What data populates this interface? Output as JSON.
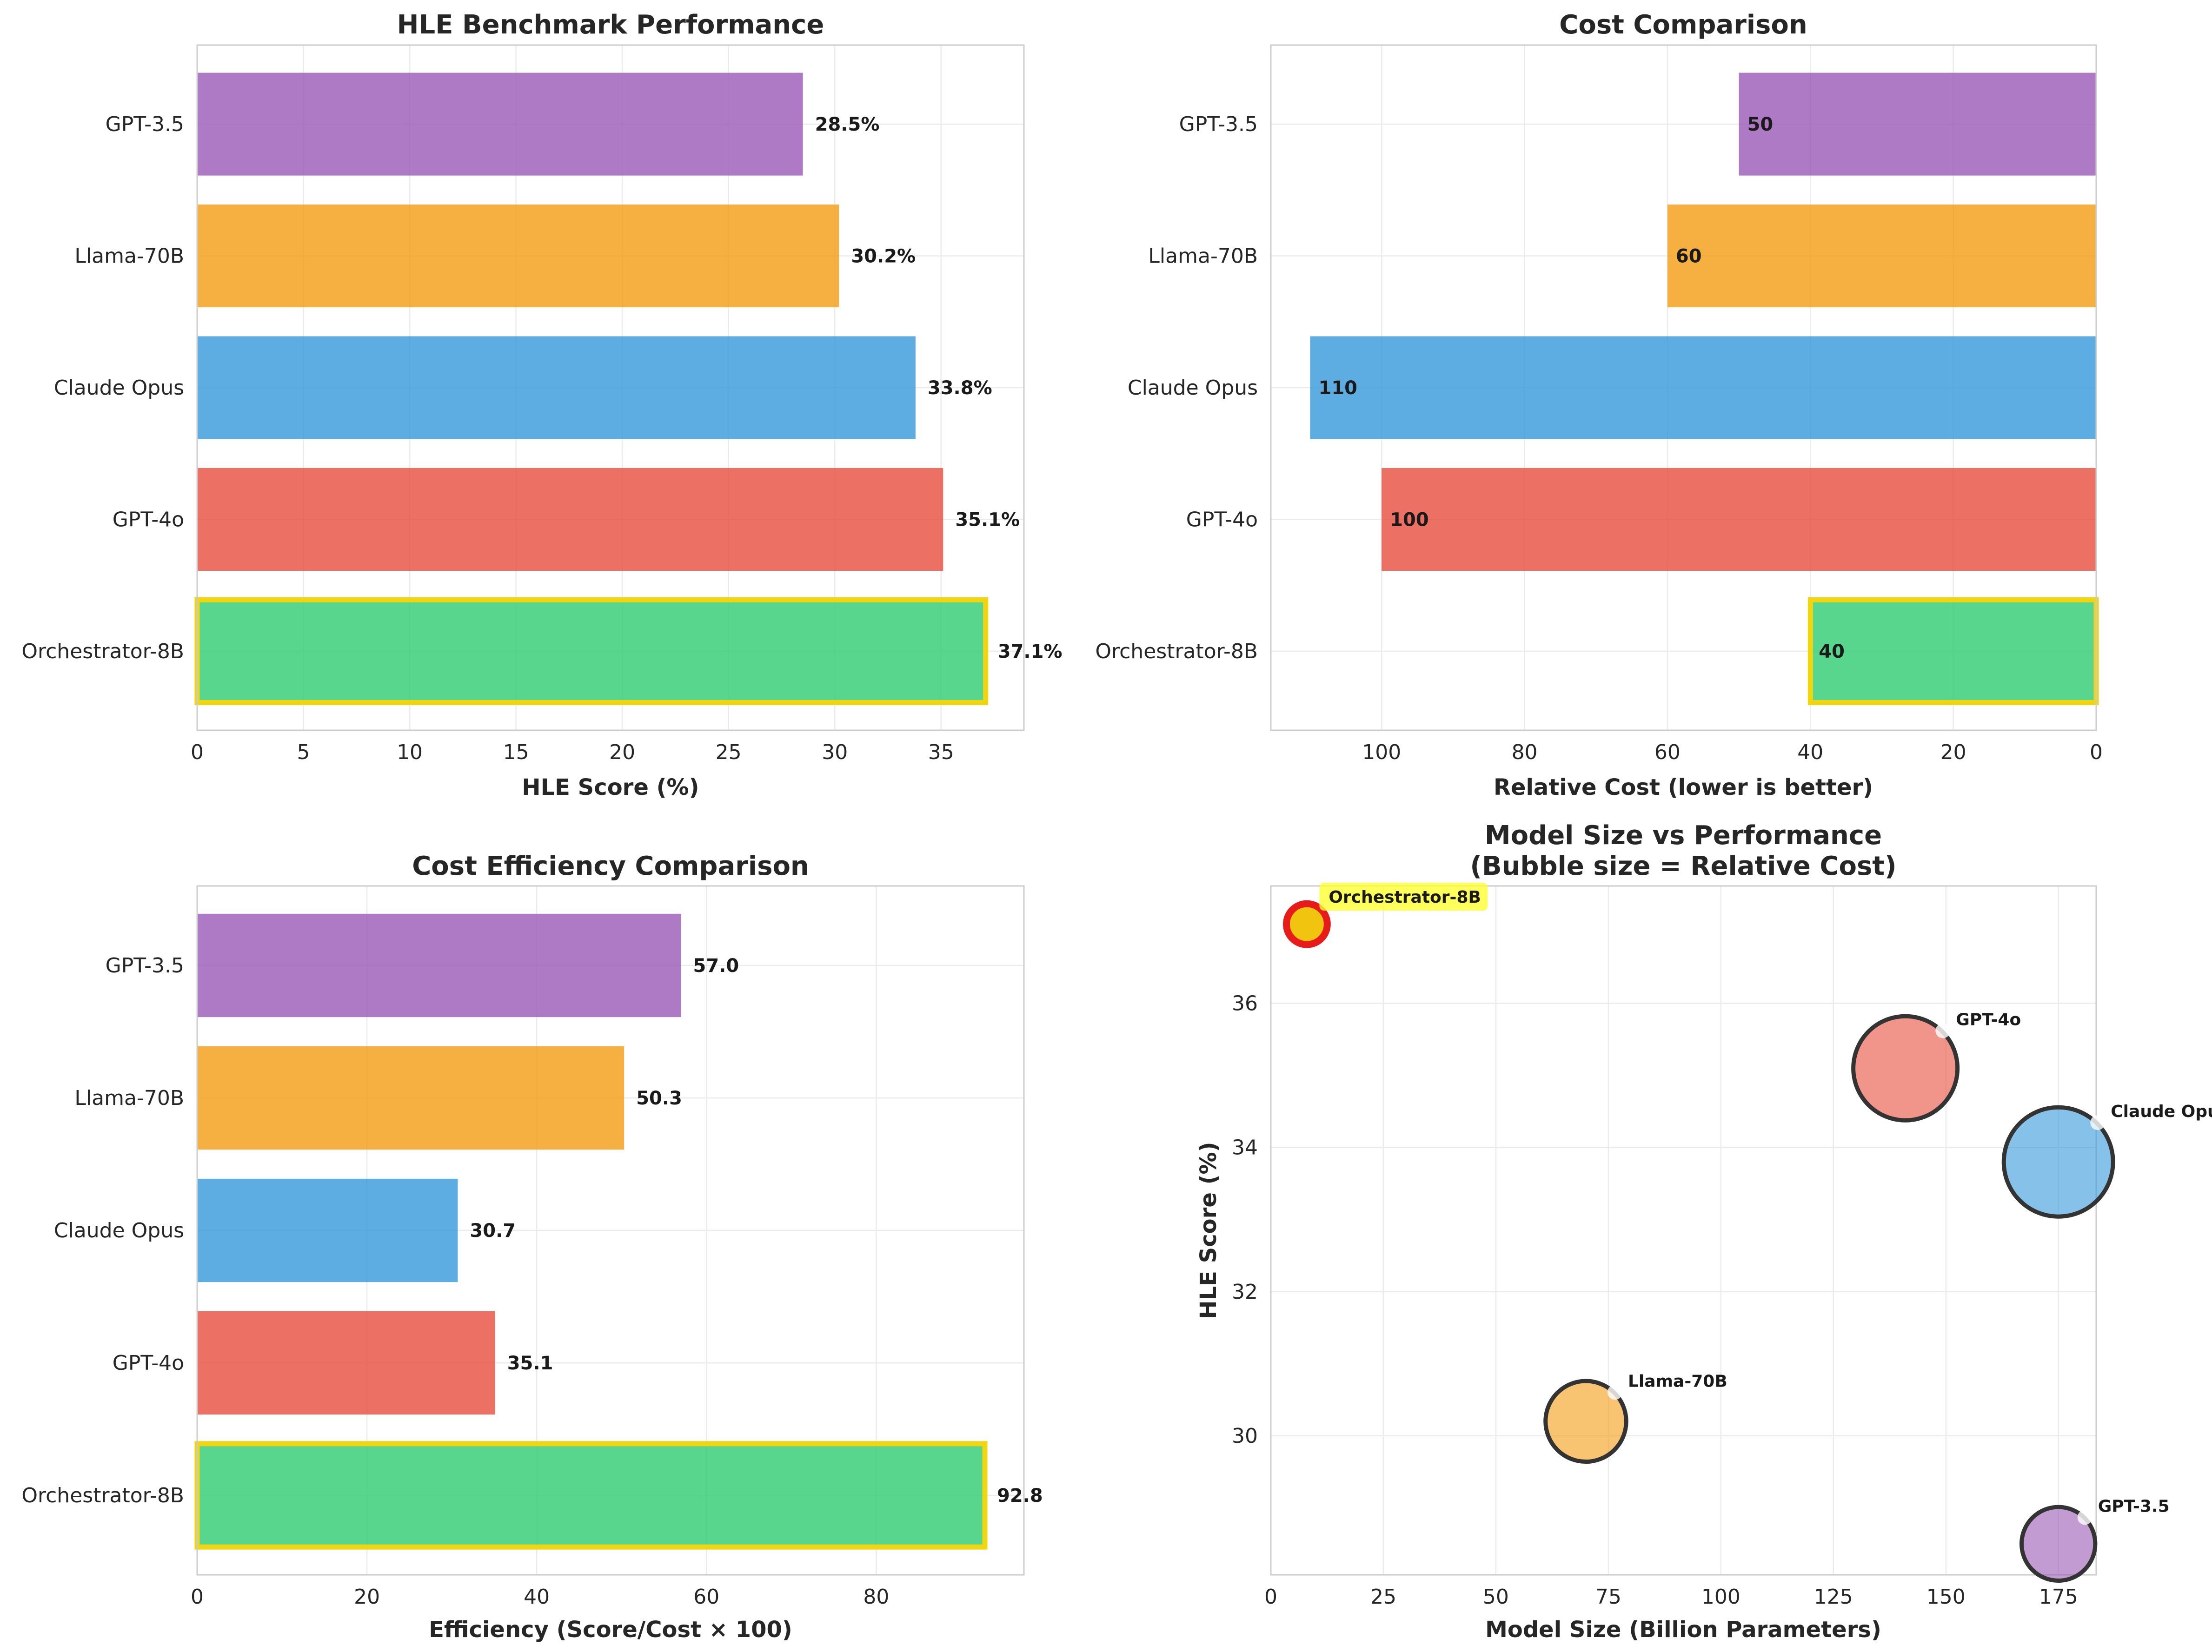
{
  "chart_data": [
    {
      "type": "bar",
      "orientation": "horizontal",
      "title": "HLE Benchmark Performance",
      "xlabel": "HLE Score (%)",
      "ylabel": "",
      "xlim": [
        0,
        38.9
      ],
      "xticks": [
        0,
        5,
        10,
        15,
        20,
        25,
        30,
        35
      ],
      "grid": true,
      "categories": [
        "Orchestrator-8B",
        "GPT-4o",
        "Claude Opus",
        "Llama-70B",
        "GPT-3.5"
      ],
      "values": [
        37.1,
        35.1,
        33.8,
        30.2,
        28.5
      ],
      "value_labels": [
        "37.1%",
        "35.1%",
        "33.8%",
        "30.2%",
        "28.5%"
      ],
      "colors": [
        "#2ecc71",
        "#e74c3c",
        "#3498db",
        "#f39c12",
        "#9b59b6"
      ],
      "highlight": "Orchestrator-8B",
      "highlight_color": "#f1d511"
    },
    {
      "type": "bar",
      "orientation": "horizontal",
      "title": "Cost Comparison",
      "xlabel": "Relative Cost (lower is better)",
      "ylabel": "",
      "xlim": [
        115.5,
        0
      ],
      "x_inverted": true,
      "xticks": [
        100,
        80,
        60,
        40,
        20,
        0
      ],
      "grid": true,
      "categories": [
        "Orchestrator-8B",
        "GPT-4o",
        "Claude Opus",
        "Llama-70B",
        "GPT-3.5"
      ],
      "values": [
        40,
        100,
        110,
        60,
        50
      ],
      "value_labels": [
        "40",
        "100",
        "110",
        "60",
        "50"
      ],
      "colors": [
        "#2ecc71",
        "#e74c3c",
        "#3498db",
        "#f39c12",
        "#9b59b6"
      ],
      "highlight": "Orchestrator-8B",
      "highlight_color": "#f1d511"
    },
    {
      "type": "bar",
      "orientation": "horizontal",
      "title": "Cost Efficiency Comparison",
      "xlabel": "Efficiency (Score/Cost × 100)",
      "ylabel": "",
      "xlim": [
        0,
        97.4
      ],
      "xticks": [
        0,
        20,
        40,
        60,
        80
      ],
      "grid": true,
      "categories": [
        "Orchestrator-8B",
        "GPT-4o",
        "Claude Opus",
        "Llama-70B",
        "GPT-3.5"
      ],
      "values": [
        92.8,
        35.1,
        30.7,
        50.3,
        57.0
      ],
      "value_labels": [
        "92.8",
        "35.1",
        "30.7",
        "50.3",
        "57.0"
      ],
      "colors": [
        "#2ecc71",
        "#e74c3c",
        "#3498db",
        "#f39c12",
        "#9b59b6"
      ],
      "highlight": "Orchestrator-8B",
      "highlight_color": "#f1d511"
    },
    {
      "type": "scatter",
      "title": "Model Size vs Performance",
      "subtitle": "(Bubble size = Relative Cost)",
      "xlabel": "Model Size (Billion Parameters)",
      "ylabel": "HLE Score (%)",
      "xlim": [
        0,
        183.4
      ],
      "ylim": [
        28.07,
        37.63
      ],
      "xticks": [
        0,
        25,
        50,
        75,
        100,
        125,
        150,
        175
      ],
      "yticks": [
        30,
        32,
        34,
        36
      ],
      "grid": true,
      "points": [
        {
          "name": "Orchestrator-8B",
          "x": 8,
          "y": 37.1,
          "cost": 40,
          "color": "#f1c40f",
          "edge": "#e81b1b",
          "highlight": true
        },
        {
          "name": "GPT-4o",
          "x": 141,
          "y": 35.1,
          "cost": 100,
          "color": "#e74c3c",
          "edge": "#333333"
        },
        {
          "name": "Claude Opus",
          "x": 175,
          "y": 33.8,
          "cost": 110,
          "color": "#3498db",
          "edge": "#333333"
        },
        {
          "name": "Llama-70B",
          "x": 70,
          "y": 30.2,
          "cost": 60,
          "color": "#f39c12",
          "edge": "#333333"
        },
        {
          "name": "GPT-3.5",
          "x": 175,
          "y": 28.5,
          "cost": 50,
          "color": "#9b59b6",
          "edge": "#333333"
        }
      ]
    }
  ]
}
